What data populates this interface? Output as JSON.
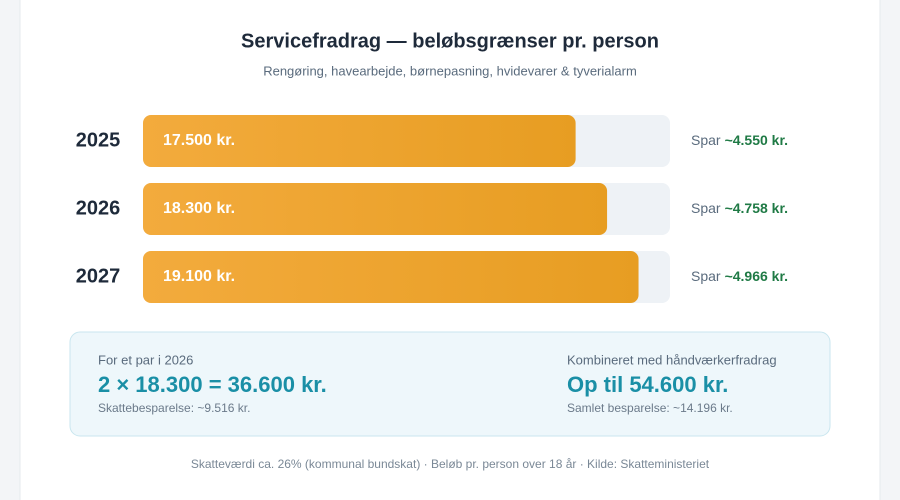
{
  "chart_data": {
    "type": "bar",
    "orientation": "horizontal",
    "title": "Servicefradrag — beløbsgrænser pr. person",
    "subtitle": "Rengøring, havearbejde, børnepasning, hvidevarer & tyverialarm",
    "categories": [
      "2025",
      "2026",
      "2027"
    ],
    "values": [
      17500,
      18300,
      19100
    ],
    "value_labels": [
      "17.500 kr.",
      "18.300 kr.",
      "19.100 kr."
    ],
    "color": "#eca22c",
    "xlim": [
      6500,
      19900
    ],
    "savings": [
      {
        "prefix": "Spar",
        "amount": "~4.550 kr."
      },
      {
        "prefix": "Spar",
        "amount": "~4.758 kr."
      },
      {
        "prefix": "Spar",
        "amount": "~4.966 kr."
      }
    ],
    "info": {
      "left": {
        "label": "For et par i 2026",
        "headline": "2 × 18.300 = 36.600 kr.",
        "note": "Skattebesparelse: ~9.516 kr."
      },
      "right": {
        "label": "Kombineret med håndværkerfradrag",
        "headline": "Op til 54.600 kr.",
        "note": "Samlet besparelse: ~14.196 kr."
      }
    },
    "footer": "Skatteværdi ca. 26% (kommunal bundskat) · Beløb pr. person over 18 år · Kilde: Skatteministeriet"
  }
}
